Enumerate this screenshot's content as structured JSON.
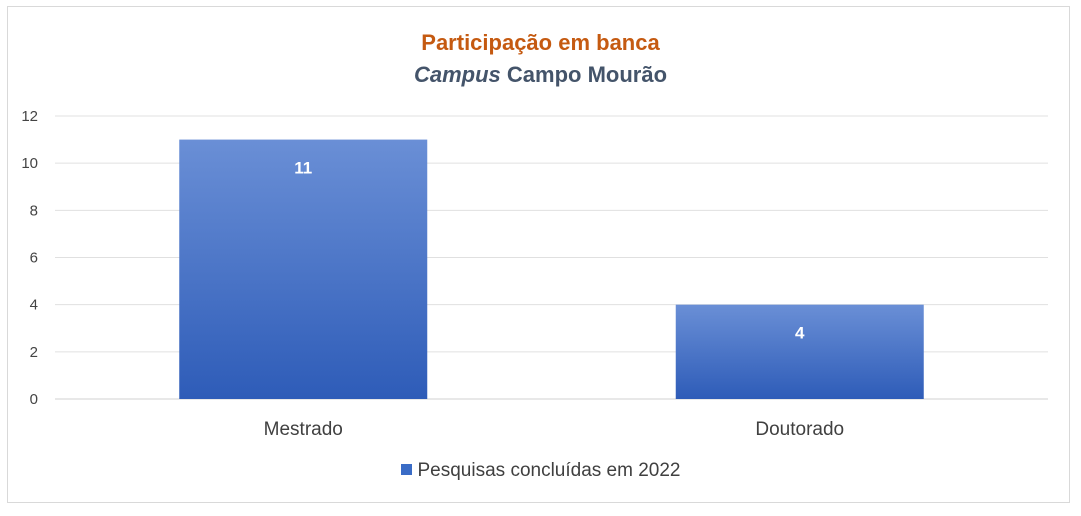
{
  "chart_data": {
    "type": "bar",
    "title_line1": "Participação em banca",
    "title_line2_italic": "Campus",
    "title_line2_rest": "Campo Mourão",
    "categories": [
      "Mestrado",
      "Doutorado"
    ],
    "series": [
      {
        "name": "Pesquisas concluídas em 2022",
        "values": [
          11,
          4
        ],
        "color": "#3a6cc6"
      }
    ],
    "ylim": [
      0,
      12
    ],
    "yticks": [
      0,
      2,
      4,
      6,
      8,
      10,
      12
    ],
    "grid": true,
    "legend_position": "bottom",
    "data_labels": true
  }
}
